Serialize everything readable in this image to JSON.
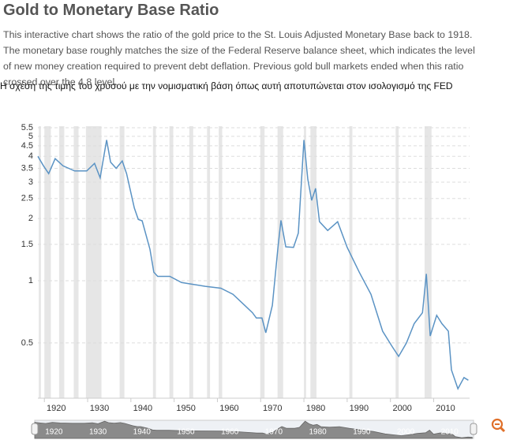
{
  "header": {
    "title": "Gold to Monetary Base Ratio",
    "description": "This interactive chart shows the ratio of the gold price to the St. Louis Adjusted Monetary Base back to 1918. The monetary base roughly matches the size of the Federal Reserve balance sheet, which indicates the level of new money creation required to prevent debt deflation. Previous gold bull markets ended when this ratio crossed over the 4.8 level.",
    "subtitle": "Η σχέση της τιμής του χρυσού με την νομισματική βάση όπως αυτή αποτυπώνεται στον ισολογισμό της FED"
  },
  "chart_data": {
    "type": "line",
    "log_scale": true,
    "grid": true,
    "color": "#5b93c4",
    "x": [
      1918.5,
      1919.8,
      1921,
      1922.5,
      1924.3,
      1927,
      1929.8,
      1931.6,
      1932.9,
      1934.4,
      1935.3,
      1936.6,
      1938,
      1939,
      1940.8,
      1941.7,
      1942.6,
      1944.4,
      1945.3,
      1946.2,
      1949,
      1951.7,
      1954.5,
      1957.2,
      1960.8,
      1963.6,
      1966.3,
      1968.1,
      1969,
      1970.3,
      1971.2,
      1972.7,
      1974,
      1974.7,
      1975.8,
      1977.6,
      1978.7,
      1980,
      1980.9,
      1981.8,
      1982.7,
      1983.6,
      1985.5,
      1987.8,
      1990,
      1992.8,
      1995.5,
      1998.2,
      2000.4,
      2001.9,
      2003.7,
      2005.5,
      2007.4,
      2008.3,
      2009.2,
      2010.7,
      2011.9,
      2013.4,
      2014.1,
      2015.6,
      2017,
      2018
    ],
    "values": [
      4.0,
      3.6,
      3.3,
      3.9,
      3.6,
      3.4,
      3.4,
      3.7,
      3.15,
      4.8,
      3.75,
      3.5,
      3.8,
      3.3,
      2.25,
      1.98,
      1.95,
      1.42,
      1.1,
      1.05,
      1.05,
      0.98,
      0.96,
      0.94,
      0.92,
      0.86,
      0.76,
      0.7,
      0.66,
      0.66,
      0.56,
      0.76,
      1.45,
      1.96,
      1.46,
      1.45,
      1.7,
      4.8,
      3.1,
      2.45,
      2.8,
      1.93,
      1.75,
      1.93,
      1.45,
      1.1,
      0.86,
      0.57,
      0.48,
      0.43,
      0.5,
      0.62,
      0.7,
      1.08,
      0.54,
      0.68,
      0.62,
      0.57,
      0.37,
      0.3,
      0.34,
      0.33
    ],
    "recessions": [
      [
        1918.7,
        1919.2
      ],
      [
        1920,
        1921.5
      ],
      [
        1923.4,
        1924.6
      ],
      [
        1926.8,
        1927.9
      ],
      [
        1929.6,
        1933.2
      ],
      [
        1937.4,
        1938.5
      ],
      [
        1945.1,
        1945.8
      ],
      [
        1948.9,
        1949.8
      ],
      [
        1953.5,
        1954.4
      ],
      [
        1957.6,
        1958.3
      ],
      [
        1960.3,
        1961.1
      ],
      [
        1969.9,
        1970.9
      ],
      [
        1973.9,
        1975.2
      ],
      [
        1980,
        1980.5
      ],
      [
        1981.5,
        1982.9
      ],
      [
        1990.5,
        1991.2
      ],
      [
        2001.2,
        2001.9
      ],
      [
        2007.9,
        2009.5
      ]
    ],
    "xlim": [
      1918.5,
      2018.3
    ],
    "xticks": [
      1920,
      1930,
      1940,
      1950,
      1960,
      1970,
      1980,
      1990,
      2000,
      2010
    ],
    "ylim": [
      0.27,
      5.6
    ],
    "yticks": [
      0.5,
      1,
      1.5,
      2,
      2.5,
      3,
      3.5,
      4,
      4.5,
      5,
      5.5
    ]
  }
}
